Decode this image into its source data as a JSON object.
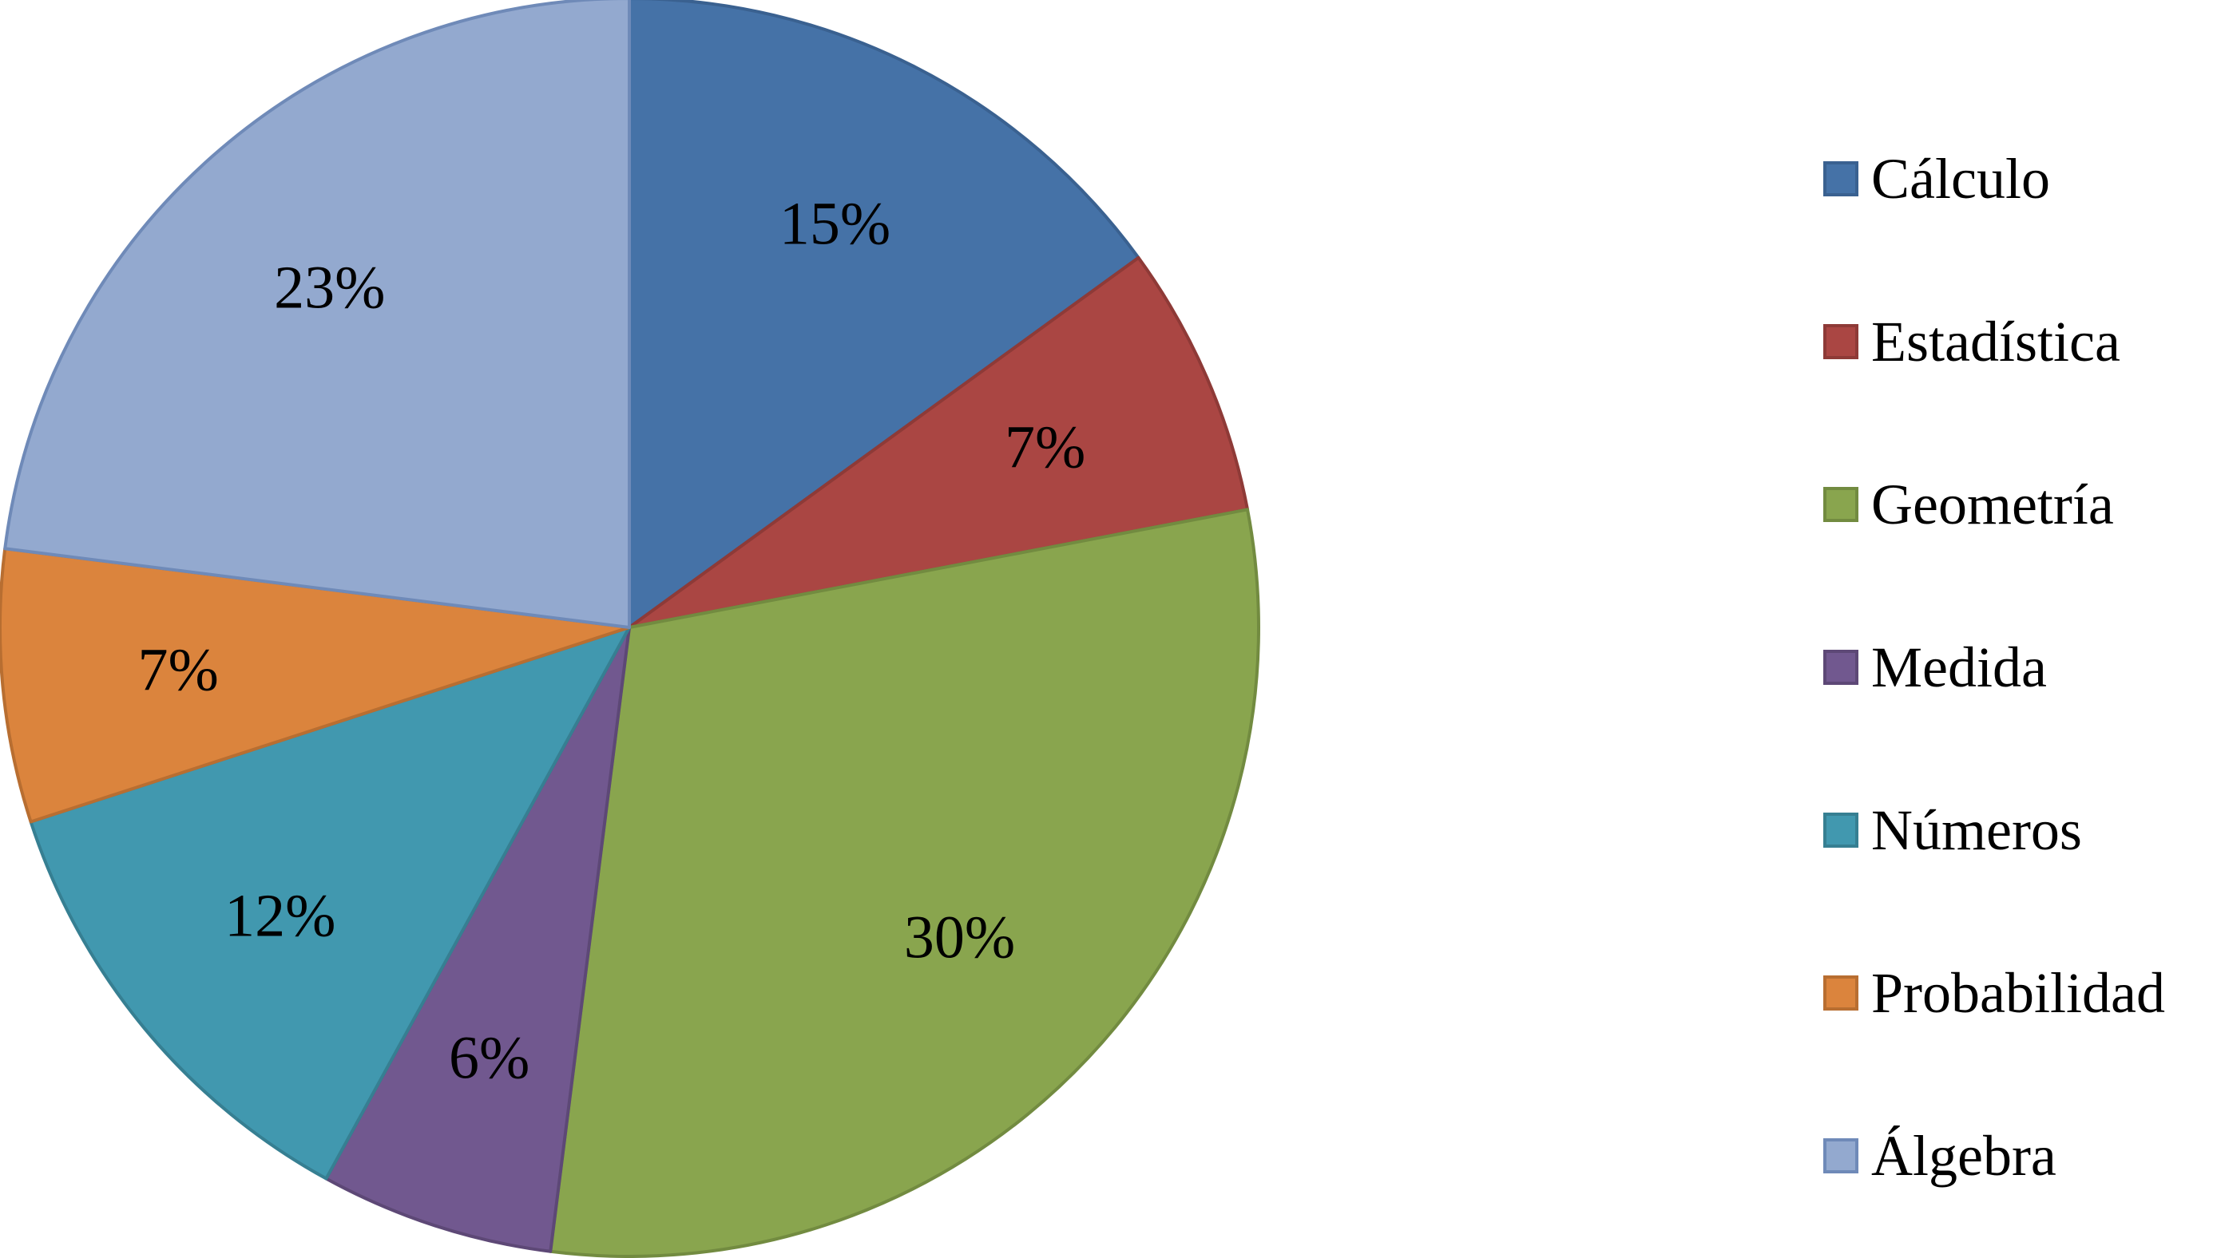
{
  "chart_data": {
    "type": "pie",
    "title": "",
    "legend_position": "right",
    "slices": [
      {
        "name": "Cálculo",
        "value": 15,
        "label": "15%",
        "color": "#4572A7",
        "edge": "#3A6190"
      },
      {
        "name": "Estadística",
        "value": 7,
        "label": "7%",
        "color": "#AA4643",
        "edge": "#8E3A37"
      },
      {
        "name": "Geometría",
        "value": 30,
        "label": "30%",
        "color": "#89A54E",
        "edge": "#728B40"
      },
      {
        "name": "Medida",
        "value": 6,
        "label": "6%",
        "color": "#71588F",
        "edge": "#5D4876"
      },
      {
        "name": "Números",
        "value": 12,
        "label": "12%",
        "color": "#4198AF",
        "edge": "#367F92"
      },
      {
        "name": "Probabilidad",
        "value": 7,
        "label": "7%",
        "color": "#DB843D",
        "edge": "#B86E31"
      },
      {
        "name": "Álgebra",
        "value": 23,
        "label": "23%",
        "color": "#93A9CF",
        "edge": "#6F8AB8"
      }
    ]
  }
}
